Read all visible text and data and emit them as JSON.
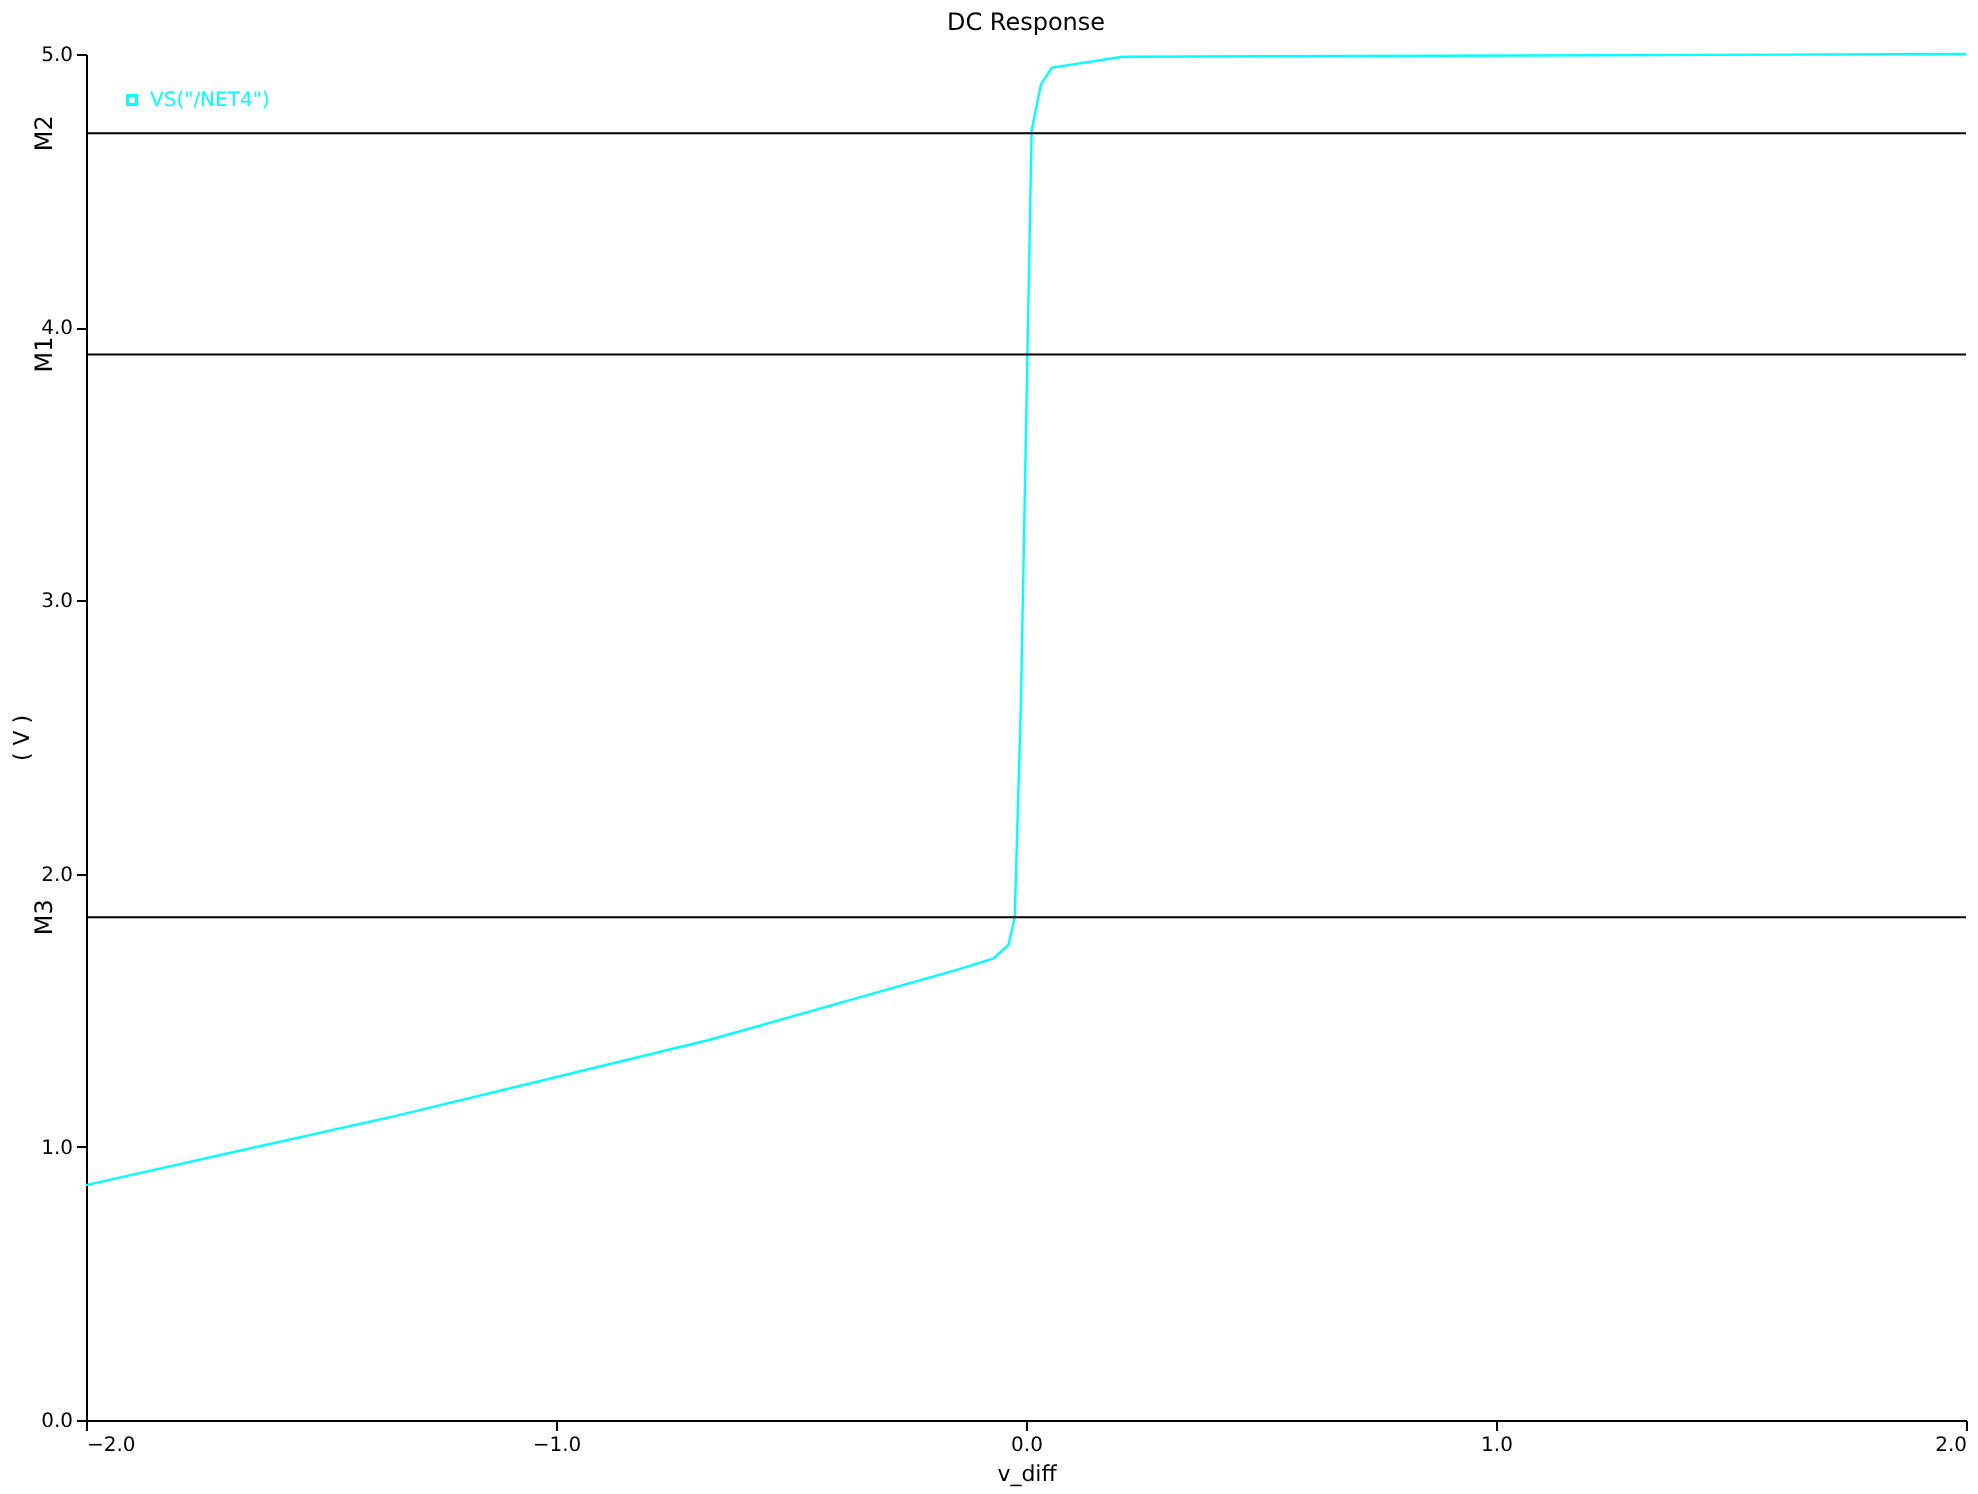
{
  "chart_data": {
    "type": "line",
    "title": "DC Response",
    "xlabel": "v_diff",
    "ylabel": "( V )",
    "series": [
      {
        "name": "VS(\"/NET4\")",
        "color": "#00ffff",
        "x": [
          -2.0,
          -1.336,
          -0.677,
          -0.142,
          -0.069,
          -0.037,
          -0.024,
          -0.011,
          0.012,
          0.032,
          0.055,
          0.206,
          2.0
        ],
        "values": [
          0.86,
          1.115,
          1.39,
          1.65,
          1.69,
          1.74,
          1.84,
          2.61,
          4.72,
          4.89,
          4.95,
          4.99,
          5.0
        ]
      }
    ],
    "xlim": [
      -2.0,
      2.0
    ],
    "xticks": [
      {
        "value": -2,
        "label": "−2.0"
      },
      {
        "value": -1,
        "label": "−1.0"
      },
      {
        "value": 0,
        "label": "0.0"
      },
      {
        "value": 1,
        "label": "1.0"
      },
      {
        "value": 2,
        "label": "2.0"
      }
    ],
    "ylim": [
      0.0,
      5.0
    ],
    "yticks": [
      {
        "value": 0,
        "label": "0.0"
      },
      {
        "value": 1,
        "label": "1.0"
      },
      {
        "value": 2,
        "label": "2.0"
      },
      {
        "value": 3,
        "label": "3.0"
      },
      {
        "value": 4,
        "label": "4.0"
      },
      {
        "value": 5,
        "label": "5.0"
      }
    ],
    "ref_lines": [
      {
        "axis": "y",
        "value": 4.71,
        "label": "M2",
        "color": "#000000"
      },
      {
        "axis": "y",
        "value": 3.9,
        "label": "M1",
        "color": "#000000"
      },
      {
        "axis": "y",
        "value": 1.84,
        "label": "M3",
        "color": "#000000"
      }
    ],
    "grid": false,
    "legend": "top left"
  }
}
